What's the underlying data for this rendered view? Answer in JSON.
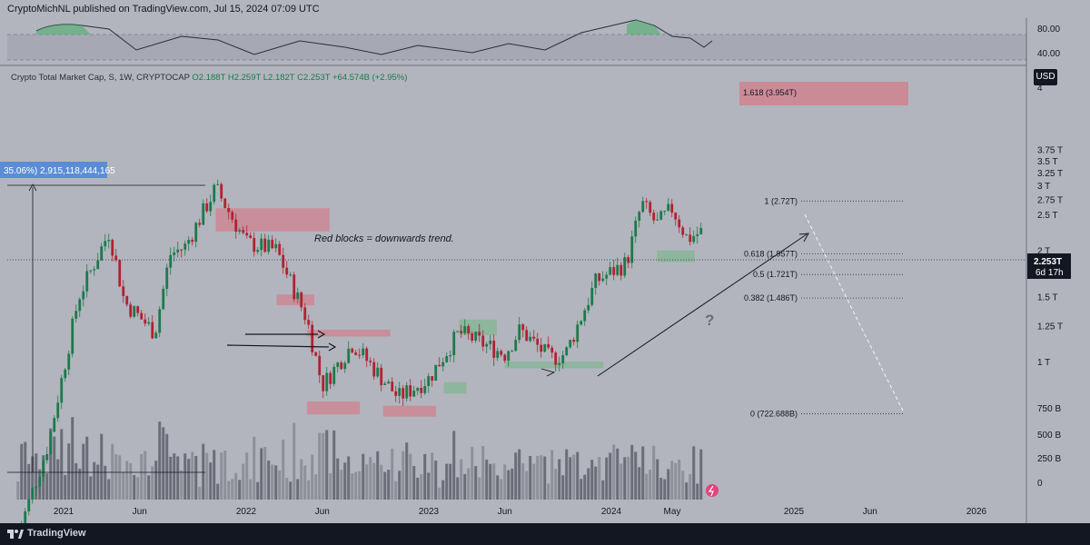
{
  "header": {
    "published": "CryptoMichNL published on TradingView.com, Jul 15, 2024 07:09 UTC"
  },
  "legend": {
    "symbol": "Crypto Total Market Cap, S, 1W, CRYPTOCAP",
    "open": "O2.188T",
    "high": "H2.259T",
    "low": "L2.182T",
    "close": "C2.253T",
    "change": "+64.574B (+2.95%)"
  },
  "currency_button": "USD",
  "footer": {
    "brand": "TradingView"
  },
  "colors": {
    "up": "#1b7a4a",
    "down": "#b2202f",
    "background": "#b2b5be",
    "footer": "#131722",
    "red_block": "#d27e8a",
    "green_block": "#7fb58f"
  },
  "chart_data": {
    "type": "candlestick",
    "ylabel": "USD",
    "yscale": "log",
    "ylim": [
      0.3,
      4.4
    ],
    "y_ticks": [
      "4",
      "3.75 T",
      "3.5 T",
      "3.25 T",
      "3 T",
      "2.75 T",
      "2.5 T",
      "2 T",
      "1.75 T",
      "1.5 T",
      "1.25 T",
      "1 T",
      "750 B",
      "500 B",
      "250 B",
      "0"
    ],
    "x_ticks": [
      "2021",
      "Jun",
      "2022",
      "Jun",
      "2023",
      "Jun",
      "2024",
      "May",
      "2025",
      "Jun",
      "2026"
    ],
    "price_label": {
      "value": "2.253T",
      "countdown": "6d 17h"
    },
    "close_path": [
      [
        "2020-10",
        0.34
      ],
      [
        "2020-12",
        0.6
      ],
      [
        "2021-02",
        1.5
      ],
      [
        "2021-04",
        2.25
      ],
      [
        "2021-05",
        1.45
      ],
      [
        "2021-07",
        1.2
      ],
      [
        "2021-08",
        1.95
      ],
      [
        "2021-09",
        2.05
      ],
      [
        "2021-11",
        2.95
      ],
      [
        "2022-01",
        2.1
      ],
      [
        "2022-03",
        2.0
      ],
      [
        "2022-05",
        1.3
      ],
      [
        "2022-06",
        0.86
      ],
      [
        "2022-08",
        1.12
      ],
      [
        "2022-11",
        0.8
      ],
      [
        "2023-01",
        0.9
      ],
      [
        "2023-03",
        1.2
      ],
      [
        "2023-06",
        1.05
      ],
      [
        "2023-07",
        1.22
      ],
      [
        "2023-09",
        1.02
      ],
      [
        "2023-10",
        1.05
      ],
      [
        "2023-12",
        1.65
      ],
      [
        "2024-02",
        1.85
      ],
      [
        "2024-03",
        2.68
      ],
      [
        "2024-04",
        2.35
      ],
      [
        "2024-05",
        2.6
      ],
      [
        "2024-06",
        2.15
      ],
      [
        "2024-07",
        2.253
      ]
    ],
    "fibonacci": [
      {
        "label": "1.618 (3.954T)",
        "value": 3.954
      },
      {
        "label": "1 (2.72T)",
        "value": 2.72
      },
      {
        "label": "0.618 (1.957T)",
        "value": 1.957
      },
      {
        "label": "0.5 (1.721T)",
        "value": 1.721
      },
      {
        "label": "0.382 (1.486T)",
        "value": 1.486
      },
      {
        "label": "0 (722.688B)",
        "value": 0.722688
      }
    ],
    "annotations": {
      "red_blocks_note": "Red blocks = downwards trend.",
      "question_mark": "?",
      "measure_label": "35.06%) 2,915,118,444,165"
    },
    "rsi": {
      "ticks": [
        "80.00",
        "40.00"
      ]
    }
  }
}
